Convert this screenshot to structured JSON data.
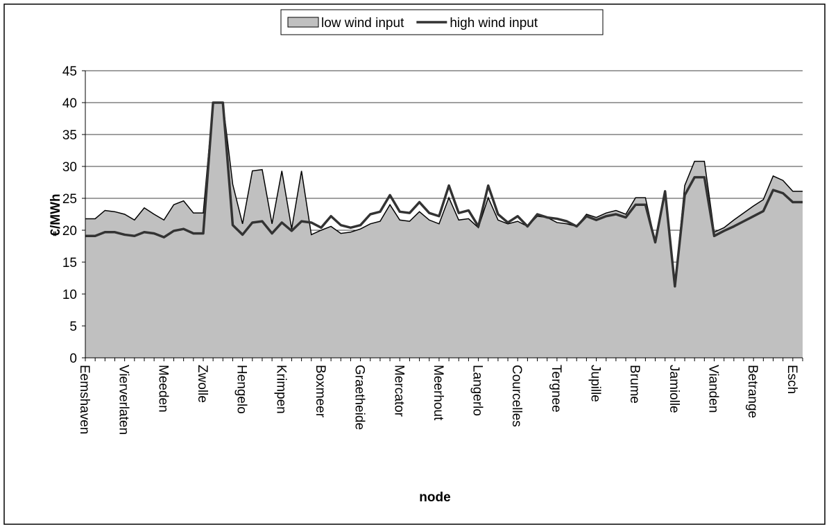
{
  "chart_data": {
    "type": "area",
    "y_label": "€/MWh",
    "x_label": "node",
    "categories": [
      "Eemshaven",
      null,
      null,
      null,
      "Vierverlaten",
      null,
      null,
      null,
      "Meeden",
      null,
      null,
      null,
      "Zwolle",
      null,
      null,
      null,
      "Hengelo",
      null,
      null,
      null,
      "Krimpen",
      null,
      null,
      null,
      "Boxmeer",
      null,
      null,
      null,
      "Graetheide",
      null,
      null,
      null,
      "Mercator",
      null,
      null,
      null,
      "Meerhout",
      null,
      null,
      null,
      "Langerlo",
      null,
      null,
      null,
      "Courcelles",
      null,
      null,
      null,
      "Tergnee",
      null,
      null,
      null,
      "Jupille",
      null,
      null,
      null,
      "Brume",
      null,
      null,
      null,
      "Jamiolle",
      null,
      null,
      null,
      "Vianden",
      null,
      null,
      null,
      "Betrange",
      null,
      null,
      null,
      "Esch",
      null
    ],
    "series": [
      {
        "name": "low wind input",
        "type": "area",
        "color": "#c0c0c0",
        "values": [
          21.8,
          21.8,
          23.1,
          22.9,
          22.5,
          21.6,
          23.5,
          22.5,
          21.6,
          24.0,
          24.6,
          22.7,
          22.7,
          40,
          40,
          27.2,
          21.0,
          29.3,
          29.5,
          21.0,
          29.3,
          20.2,
          29.3,
          19.3,
          20.0,
          20.6,
          19.5,
          19.7,
          20.2,
          21.0,
          21.4,
          24.0,
          21.6,
          21.4,
          22.9,
          21.6,
          21.0,
          25.1,
          21.6,
          21.8,
          20.4,
          25.1,
          21.6,
          21.0,
          21.4,
          20.6,
          22.2,
          22.0,
          21.2,
          21.0,
          20.6,
          22.5,
          22.0,
          22.7,
          23.1,
          22.5,
          25.1,
          25.1,
          18.1,
          26.1,
          11.4,
          27.0,
          30.8,
          30.8,
          19.7,
          20.4,
          21.6,
          22.7,
          23.8,
          24.8,
          28.5,
          27.8,
          26.1,
          26.1
        ]
      },
      {
        "name": "high wind input",
        "type": "line",
        "color": "#333333",
        "values": [
          19.1,
          19.1,
          19.7,
          19.7,
          19.3,
          19.1,
          19.7,
          19.5,
          18.9,
          19.9,
          20.2,
          19.5,
          19.5,
          40,
          40,
          20.8,
          19.3,
          21.2,
          21.4,
          19.5,
          21.2,
          19.9,
          21.4,
          21.2,
          20.4,
          22.2,
          20.8,
          20.4,
          20.8,
          22.5,
          22.9,
          25.5,
          22.9,
          22.7,
          24.4,
          22.7,
          22.2,
          27.0,
          22.7,
          23.1,
          20.6,
          27.0,
          22.5,
          21.2,
          22.2,
          20.6,
          22.5,
          22.0,
          21.8,
          21.4,
          20.6,
          22.2,
          21.6,
          22.2,
          22.5,
          22.0,
          24.0,
          24.0,
          18.1,
          26.1,
          11.2,
          25.5,
          28.3,
          28.3,
          19.1,
          19.9,
          20.6,
          21.4,
          22.2,
          23.0,
          26.3,
          25.8,
          24.4,
          24.4
        ]
      }
    ],
    "ylim": [
      0,
      45
    ],
    "yticks": [
      0,
      5,
      10,
      15,
      20,
      25,
      30,
      35,
      40,
      45
    ],
    "grid": true
  }
}
